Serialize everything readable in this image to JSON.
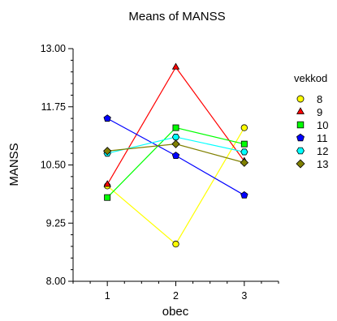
{
  "chart_data": {
    "type": "line",
    "title": "Means of MANSS",
    "xlabel": "obec",
    "ylabel": "MANSS",
    "x": [
      1,
      2,
      3
    ],
    "x_tick_labels": [
      "1",
      "2",
      "3"
    ],
    "xlim": [
      0.5,
      3.5
    ],
    "ylim": [
      8.0,
      13.0
    ],
    "y_ticks": [
      8.0,
      9.25,
      10.5,
      11.75,
      13.0
    ],
    "y_tick_labels": [
      "8.00",
      "9.25",
      "10.50",
      "11.75",
      "13.00"
    ],
    "grid": false,
    "legend": {
      "title": "vekkod",
      "placement": "right"
    },
    "series": [
      {
        "name": "8",
        "marker": "circle",
        "color": "#FFFF00",
        "values": [
          10.05,
          8.8,
          11.3
        ]
      },
      {
        "name": "9",
        "marker": "triangle",
        "color": "#FF0000",
        "values": [
          10.08,
          12.6,
          10.58
        ]
      },
      {
        "name": "10",
        "marker": "square",
        "color": "#00FF00",
        "values": [
          9.8,
          11.3,
          10.95
        ]
      },
      {
        "name": "11",
        "marker": "pentagon",
        "color": "#0000FF",
        "values": [
          11.5,
          10.7,
          9.85
        ]
      },
      {
        "name": "12",
        "marker": "hexagon",
        "color": "#00FFFF",
        "values": [
          10.75,
          11.1,
          10.78
        ]
      },
      {
        "name": "13",
        "marker": "diamond",
        "color": "#808000",
        "values": [
          10.8,
          10.95,
          10.55
        ]
      }
    ]
  }
}
